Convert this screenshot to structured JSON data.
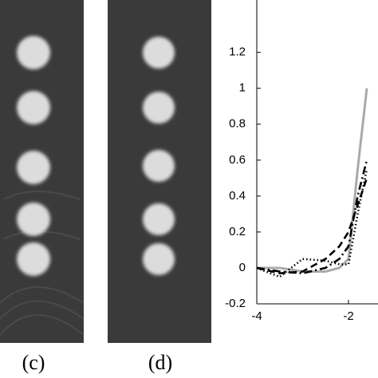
{
  "panels": [
    {
      "label": "(c)"
    },
    {
      "label": "(d)"
    }
  ],
  "chart_data": {
    "type": "line",
    "xlim": [
      -4,
      0
    ],
    "ylim": [
      -0.2,
      1.4
    ],
    "xticks": [
      -4,
      -2
    ],
    "yticks": [
      -0.2,
      0,
      0.2,
      0.4,
      0.6,
      0.8,
      1,
      1.2
    ],
    "x": [
      -4,
      -3.5,
      -3,
      -2.5,
      -2.2,
      -2,
      -1.8,
      -1.6
    ],
    "series": [
      {
        "color": "#aaaaaa",
        "style": "solid",
        "values": [
          0,
          0,
          -0.02,
          -0.02,
          0,
          0.05,
          0.55,
          1.0
        ]
      },
      {
        "color": "#000000",
        "style": "dashed",
        "values": [
          0,
          -0.03,
          -0.02,
          0.05,
          0.12,
          0.2,
          0.35,
          0.5
        ]
      },
      {
        "color": "#000000",
        "style": "dashdot",
        "values": [
          0,
          -0.02,
          -0.03,
          0,
          0.05,
          0.12,
          0.4,
          0.6
        ]
      },
      {
        "color": "#000000",
        "style": "dotted",
        "values": [
          0,
          -0.05,
          0.05,
          0.04,
          0.02,
          0.02,
          0.3,
          0.55
        ]
      }
    ]
  }
}
